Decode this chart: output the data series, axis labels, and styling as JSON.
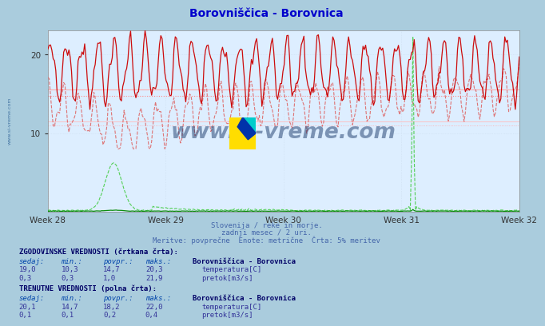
{
  "title": "Borovniščica - Borovnica",
  "title_color": "#0000cc",
  "bg_color": "#aaccdd",
  "plot_bg_color": "#ddeeff",
  "grid_color": "#ccddee",
  "xlabel_weeks": [
    "Week 28",
    "Week 29",
    "Week 30",
    "Week 31",
    "Week 32"
  ],
  "ylim": [
    0,
    23
  ],
  "yticks": [
    10,
    20
  ],
  "hlines_solid": [
    {
      "y": 15.5,
      "color": "#ffaaaa",
      "lw": 0.8,
      "ls": "-"
    },
    {
      "y": 11.5,
      "color": "#ffbbbb",
      "lw": 0.6,
      "ls": "-"
    }
  ],
  "hlines_dotted": [
    {
      "y": 14.7,
      "color": "#ff8888",
      "lw": 0.8,
      "ls": ":"
    },
    {
      "y": 11.0,
      "color": "#ffaaaa",
      "lw": 0.6,
      "ls": ":"
    }
  ],
  "subtitle_lines": [
    "Slovenija / reke in morje.",
    "zadnji mesec / 2 uri.",
    "Meritve: povprečne  Enote: metrične  Črta: 5% meritev"
  ],
  "subtitle_color": "#4466aa",
  "table_title_color": "#000066",
  "table_header_color": "#0044aa",
  "table_data_color": "#333399",
  "red_dark": "#cc0000",
  "red_light": "#dd6666",
  "green_dark": "#008800",
  "green_light": "#44cc44",
  "watermark_color": "#1a3a6a"
}
